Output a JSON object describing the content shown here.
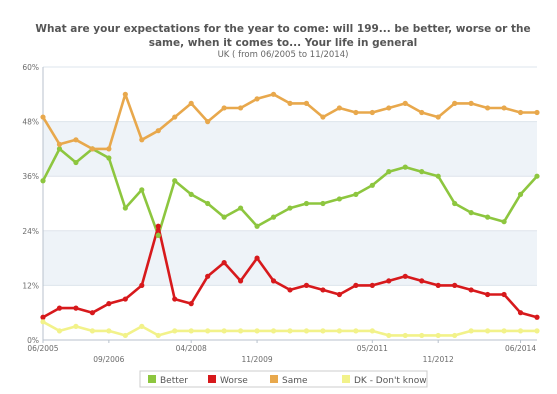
{
  "chart_data": {
    "type": "line",
    "title_line1": "What are your expectations for the year to come: will 199... be better, worse or the",
    "title_line2": "same, when it comes to... Your life in general",
    "subtitle": "UK ( from 06/2005 to 11/2014)",
    "ylim": [
      0,
      60
    ],
    "y_ticks": [
      "0%",
      "12%",
      "24%",
      "36%",
      "48%",
      "60%"
    ],
    "y_tick_values": [
      0,
      12,
      24,
      36,
      48,
      60
    ],
    "x_count": 31,
    "x_tick_labels": [
      {
        "index": 0,
        "label": "06/2005",
        "row": 0
      },
      {
        "index": 4,
        "label": "09/2006",
        "row": 1
      },
      {
        "index": 9,
        "label": "04/2008",
        "row": 0
      },
      {
        "index": 13,
        "label": "11/2009",
        "row": 1
      },
      {
        "index": 20,
        "label": "05/2011",
        "row": 0
      },
      {
        "index": 24,
        "label": "11/2012",
        "row": 1
      },
      {
        "index": 29,
        "label": "06/2014",
        "row": 0
      }
    ],
    "grid": true,
    "legend_position": "bottom",
    "series": [
      {
        "name": "Better",
        "color": "#8dc63f",
        "values": [
          35,
          42,
          39,
          42,
          40,
          29,
          33,
          23,
          35,
          32,
          30,
          27,
          29,
          25,
          27,
          29,
          30,
          30,
          31,
          32,
          34,
          37,
          38,
          37,
          36,
          30,
          28,
          27,
          26,
          32,
          36
        ]
      },
      {
        "name": "Worse",
        "color": "#d7191c",
        "values": [
          5,
          7,
          7,
          6,
          8,
          9,
          12,
          25,
          9,
          8,
          14,
          17,
          13,
          18,
          13,
          11,
          12,
          11,
          10,
          12,
          12,
          13,
          14,
          13,
          12,
          12,
          11,
          10,
          10,
          6,
          5
        ]
      },
      {
        "name": "Same",
        "color": "#e8a84c",
        "values": [
          49,
          43,
          44,
          42,
          42,
          54,
          44,
          46,
          49,
          52,
          48,
          51,
          51,
          53,
          54,
          52,
          52,
          49,
          51,
          50,
          50,
          51,
          52,
          50,
          49,
          52,
          52,
          51,
          51,
          50,
          50
        ]
      },
      {
        "name": "DK - Don't know",
        "color": "#f2f28a",
        "values": [
          4,
          2,
          3,
          2,
          2,
          1,
          3,
          1,
          2,
          2,
          2,
          2,
          2,
          2,
          2,
          2,
          2,
          2,
          2,
          2,
          2,
          1,
          1,
          1,
          1,
          1,
          2,
          2,
          2,
          2,
          2
        ]
      }
    ]
  }
}
